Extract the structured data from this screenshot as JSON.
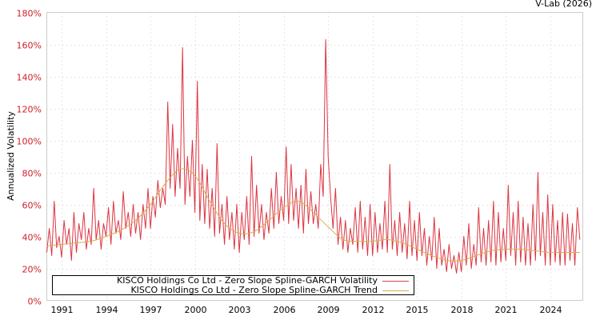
{
  "credit": "V-Lab (2026)",
  "chart_data": {
    "type": "line",
    "title": "",
    "xlabel": "",
    "ylabel": "Annualized Volatility",
    "xlim": [
      1990.0,
      2026.2
    ],
    "ylim": [
      0,
      180
    ],
    "grid": true,
    "legend_position": "bottom-left",
    "y_ticks": [
      0,
      20,
      40,
      60,
      80,
      100,
      120,
      140,
      160,
      180
    ],
    "y_tick_labels": [
      "0%",
      "20%",
      "40%",
      "60%",
      "80%",
      "100%",
      "120%",
      "140%",
      "160%",
      "180%"
    ],
    "x_ticks": [
      1991,
      1994,
      1997,
      2000,
      2003,
      2006,
      2009,
      2012,
      2015,
      2018,
      2021,
      2024
    ],
    "x_tick_labels": [
      "1991",
      "1994",
      "1997",
      "2000",
      "2003",
      "2006",
      "2009",
      "2012",
      "2015",
      "2018",
      "2021",
      "2024"
    ],
    "series": [
      {
        "name": "KISCO Holdings Co Ltd - Zero Slope Spline-GARCH Volatility",
        "color": "#d81e2c",
        "x_start": 1990.0,
        "x_step": 0.1666667,
        "values": [
          30,
          45,
          28,
          62,
          33,
          40,
          27,
          50,
          35,
          45,
          25,
          55,
          30,
          48,
          38,
          55,
          32,
          45,
          35,
          70,
          38,
          50,
          32,
          48,
          40,
          58,
          35,
          62,
          42,
          50,
          38,
          68,
          45,
          55,
          40,
          60,
          42,
          55,
          38,
          60,
          45,
          70,
          45,
          65,
          52,
          75,
          58,
          70,
          60,
          124,
          70,
          110,
          65,
          95,
          70,
          158,
          60,
          90,
          65,
          100,
          55,
          137,
          50,
          85,
          48,
          82,
          45,
          70,
          40,
          98,
          42,
          60,
          35,
          65,
          38,
          55,
          32,
          60,
          30,
          55,
          38,
          65,
          35,
          90,
          40,
          72,
          42,
          60,
          38,
          55,
          42,
          70,
          45,
          80,
          48,
          65,
          50,
          96,
          48,
          85,
          50,
          70,
          45,
          72,
          42,
          82,
          48,
          68,
          48,
          60,
          45,
          85,
          65,
          163,
          90,
          65,
          45,
          70,
          35,
          52,
          32,
          50,
          30,
          45,
          35,
          58,
          30,
          62,
          32,
          52,
          28,
          60,
          28,
          55,
          30,
          48,
          32,
          62,
          30,
          85,
          32,
          50,
          28,
          55,
          30,
          48,
          26,
          62,
          28,
          50,
          25,
          55,
          28,
          45,
          22,
          40,
          25,
          52,
          20,
          45,
          22,
          32,
          18,
          35,
          20,
          28,
          17,
          30,
          18,
          40,
          22,
          48,
          20,
          35,
          22,
          58,
          24,
          45,
          22,
          50,
          24,
          62,
          22,
          55,
          24,
          45,
          25,
          72,
          28,
          55,
          22,
          62,
          24,
          52,
          22,
          48,
          22,
          60,
          25,
          80,
          28,
          55,
          22,
          66,
          22,
          60,
          24,
          50,
          22,
          55,
          22,
          54,
          25,
          48,
          22,
          58,
          38
        ]
      },
      {
        "name": "KISCO Holdings Co Ltd - Zero Slope Spline-GARCH Trend",
        "color": "#d4b24c",
        "x": [
          1990,
          1991,
          1992,
          1993,
          1994,
          1995,
          1996,
          1997,
          1998,
          1999,
          2000,
          2001,
          2002,
          2003,
          2004,
          2005,
          2006,
          2007,
          2008,
          2009,
          2010,
          2011,
          2012,
          2013,
          2014,
          2015,
          2016,
          2017,
          2018,
          2019,
          2020,
          2021,
          2022,
          2023,
          2024,
          2025,
          2026
        ],
        "values": [
          34,
          35,
          36,
          37,
          40,
          44,
          50,
          60,
          73,
          82,
          78,
          62,
          48,
          42,
          43,
          50,
          58,
          62,
          55,
          46,
          38,
          37,
          37,
          38,
          36,
          32,
          28,
          25,
          25,
          28,
          31,
          32,
          32,
          31,
          30,
          30,
          30
        ]
      }
    ]
  }
}
